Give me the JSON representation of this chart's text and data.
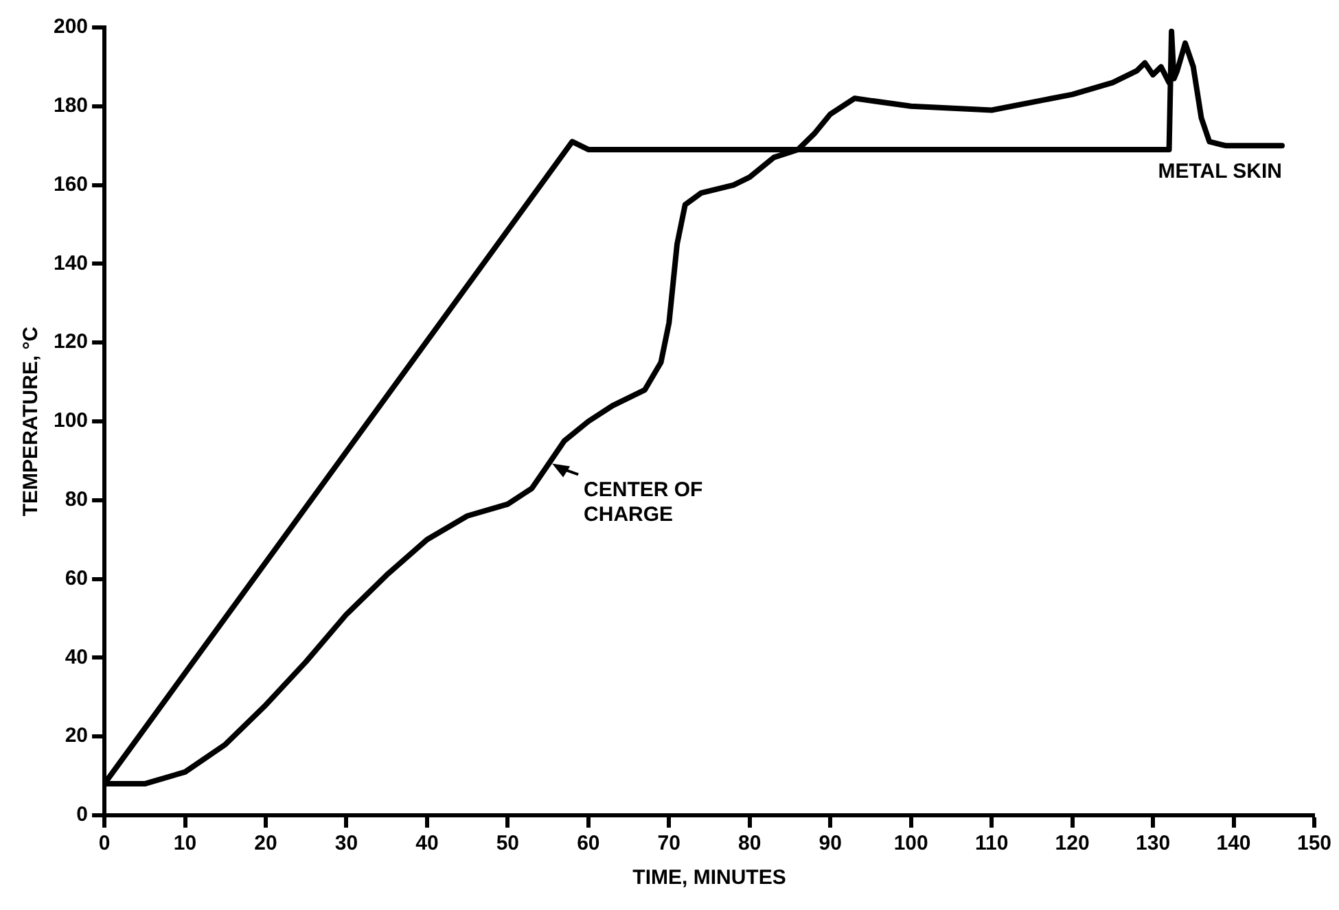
{
  "chart_data": {
    "type": "line",
    "xlabel": "TIME, MINUTES",
    "ylabel": "TEMPERATURE, °C",
    "xlim": [
      0,
      150
    ],
    "xticks": [
      0,
      10,
      20,
      30,
      40,
      50,
      60,
      70,
      80,
      90,
      100,
      110,
      120,
      130,
      140,
      150
    ],
    "ylim": [
      0,
      200
    ],
    "yticks": [
      0,
      20,
      40,
      60,
      80,
      100,
      120,
      140,
      160,
      180,
      200
    ],
    "grid": false,
    "legend": false,
    "marker": "none",
    "line_style": "solid",
    "series": [
      {
        "name": "METAL SKIN",
        "color": "#000000",
        "x": [
          0,
          58,
          60,
          132,
          132.3,
          132.6,
          133,
          134,
          135,
          136,
          137,
          139,
          146
        ],
        "values": [
          8,
          171,
          169,
          169,
          199,
          187,
          189,
          196,
          190,
          177,
          171,
          170,
          170
        ]
      },
      {
        "color": "#000000",
        "x": [
          0,
          5,
          10,
          15,
          20,
          25,
          30,
          35,
          40,
          45,
          50,
          53,
          55,
          57,
          60,
          63,
          67,
          69,
          70,
          71,
          72,
          74,
          78,
          80,
          83,
          86,
          88,
          90,
          93,
          100,
          110,
          120,
          125,
          128,
          129,
          130,
          131,
          132
        ],
        "values": [
          8,
          8,
          11,
          18,
          28,
          39,
          51,
          61,
          70,
          76,
          79,
          83,
          89,
          95,
          100,
          104,
          108,
          115,
          125,
          145,
          155,
          158,
          160,
          162,
          167,
          169,
          173,
          178,
          182,
          180,
          179,
          183,
          186,
          189,
          191,
          188,
          190,
          186
        ]
      }
    ],
    "annotations": [
      {
        "text": "CENTER OF CHARGE",
        "x": 55,
        "y": 90
      }
    ]
  }
}
